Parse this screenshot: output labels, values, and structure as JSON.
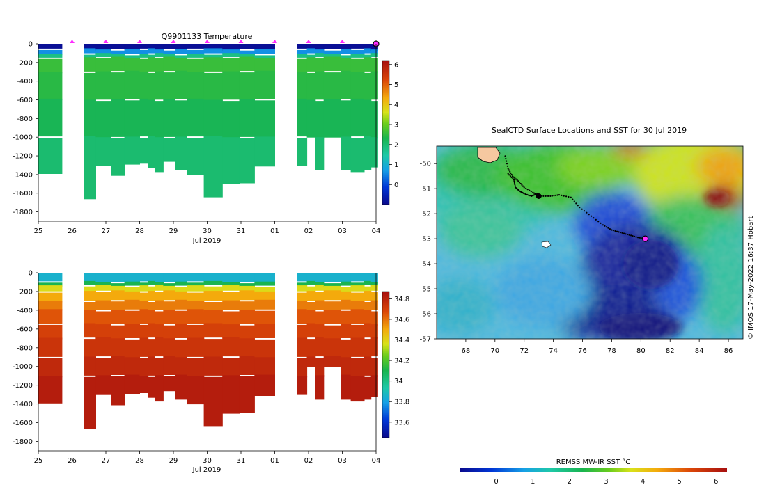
{
  "chart_data": [
    {
      "type": "heatmap",
      "name": "temperature-section",
      "title": "Q9901133  Temperature",
      "xlabel": "Jul 2019",
      "ylabel": "",
      "x_tick_labels": [
        "25",
        "26",
        "27",
        "28",
        "29",
        "30",
        "31",
        "01",
        "02",
        "03",
        "04"
      ],
      "x_tick_days": [
        25,
        26,
        27,
        28,
        29,
        30,
        31,
        32,
        33,
        34,
        35
      ],
      "xlim": [
        25,
        35
      ],
      "y_ticks": [
        0,
        -200,
        -400,
        -600,
        -800,
        -1000,
        -1200,
        -1400,
        -1600,
        -1800
      ],
      "ylim": [
        -1900,
        0
      ],
      "colorbar_ticks": [
        6,
        5,
        4,
        3,
        2,
        1,
        0
      ],
      "colorbar_range": [
        -1,
        6.2
      ],
      "profile_markers_day": [
        26,
        27,
        28,
        29,
        30,
        31,
        32,
        33,
        34
      ],
      "last_position_day": 35,
      "profiles": [
        {
          "start": 25.0,
          "end": 25.7,
          "depth": 1390
        },
        {
          "start": 26.35,
          "end": 26.7,
          "depth": 1660
        },
        {
          "start": 26.7,
          "end": 27.15,
          "depth": 1300
        },
        {
          "start": 27.15,
          "end": 27.55,
          "depth": 1410
        },
        {
          "start": 27.55,
          "end": 28.0,
          "depth": 1290
        },
        {
          "start": 28.0,
          "end": 28.25,
          "depth": 1280
        },
        {
          "start": 28.25,
          "end": 28.45,
          "depth": 1330
        },
        {
          "start": 28.45,
          "end": 28.7,
          "depth": 1370
        },
        {
          "start": 28.7,
          "end": 29.05,
          "depth": 1260
        },
        {
          "start": 29.05,
          "end": 29.4,
          "depth": 1350
        },
        {
          "start": 29.4,
          "end": 29.9,
          "depth": 1400
        },
        {
          "start": 29.9,
          "end": 30.45,
          "depth": 1640
        },
        {
          "start": 30.45,
          "end": 30.95,
          "depth": 1500
        },
        {
          "start": 30.95,
          "end": 31.4,
          "depth": 1490
        },
        {
          "start": 31.4,
          "end": 32.0,
          "depth": 1310
        },
        {
          "start": 32.65,
          "end": 32.95,
          "depth": 1300
        },
        {
          "start": 32.95,
          "end": 33.2,
          "depth": 1000
        },
        {
          "start": 33.2,
          "end": 33.45,
          "depth": 1350
        },
        {
          "start": 33.45,
          "end": 33.95,
          "depth": 1000
        },
        {
          "start": 33.95,
          "end": 34.25,
          "depth": 1350
        },
        {
          "start": 34.25,
          "end": 34.65,
          "depth": 1370
        },
        {
          "start": 34.65,
          "end": 34.85,
          "depth": 1350
        },
        {
          "start": 34.85,
          "end": 35.05,
          "depth": 1320
        }
      ],
      "layers": [
        {
          "from": 0,
          "to": 60,
          "value": -0.9
        },
        {
          "from": 60,
          "to": 110,
          "value": 0.6
        },
        {
          "from": 110,
          "to": 150,
          "value": 1.8
        },
        {
          "from": 150,
          "to": 300,
          "value": 2.6
        },
        {
          "from": 300,
          "to": 600,
          "value": 2.45
        },
        {
          "from": 600,
          "to": 1000,
          "value": 2.25
        },
        {
          "from": 1000,
          "to": 1900,
          "value": 2.0
        }
      ]
    },
    {
      "type": "heatmap",
      "name": "salinity-section",
      "title": "",
      "xlabel": "Jul 2019",
      "ylabel": "",
      "x_tick_labels": [
        "25",
        "26",
        "27",
        "28",
        "29",
        "30",
        "31",
        "01",
        "02",
        "03",
        "04"
      ],
      "x_tick_days": [
        25,
        26,
        27,
        28,
        29,
        30,
        31,
        32,
        33,
        34,
        35
      ],
      "xlim": [
        25,
        35
      ],
      "y_ticks": [
        0,
        -200,
        -400,
        -600,
        -800,
        -1000,
        -1200,
        -1400,
        -1600,
        -1800
      ],
      "ylim": [
        -1900,
        0
      ],
      "colorbar_ticks": [
        34.8,
        34.6,
        34.4,
        34.2,
        34,
        33.8,
        33.6
      ],
      "colorbar_range": [
        33.45,
        34.87
      ],
      "layers": [
        {
          "from": 0,
          "to": 100,
          "value": 33.85
        },
        {
          "from": 100,
          "to": 140,
          "value": 34.1
        },
        {
          "from": 140,
          "to": 200,
          "value": 34.38
        },
        {
          "from": 200,
          "to": 300,
          "value": 34.5
        },
        {
          "from": 300,
          "to": 400,
          "value": 34.58
        },
        {
          "from": 400,
          "to": 550,
          "value": 34.65
        },
        {
          "from": 550,
          "to": 700,
          "value": 34.7
        },
        {
          "from": 700,
          "to": 900,
          "value": 34.74
        },
        {
          "from": 900,
          "to": 1100,
          "value": 34.78
        },
        {
          "from": 1100,
          "to": 1900,
          "value": 34.82
        }
      ]
    },
    {
      "type": "heatmap",
      "name": "sst-map",
      "title": "SealCTD Surface Locations and SST for 30 Jul 2019",
      "xlim": [
        66,
        87
      ],
      "ylim": [
        -57,
        -49.3
      ],
      "x_ticks": [
        68,
        70,
        72,
        74,
        76,
        78,
        80,
        82,
        84,
        86
      ],
      "y_ticks": [
        -50,
        -51,
        -52,
        -53,
        -54,
        -55,
        -56,
        -57
      ],
      "colorbar_label": "REMSS MW-IR SST °C",
      "colorbar_ticks": [
        0,
        1,
        2,
        3,
        4,
        5,
        6
      ],
      "colorbar_range": [
        -1,
        6.3
      ],
      "last_position": [
        80.3,
        -53.0
      ],
      "track": [
        [
          70.7,
          -49.7
        ],
        [
          70.9,
          -50.2
        ],
        [
          71.2,
          -50.5
        ],
        [
          71.6,
          -50.7
        ],
        [
          72.0,
          -50.95
        ],
        [
          72.6,
          -51.15
        ],
        [
          73.0,
          -51.3
        ],
        [
          73.8,
          -51.3
        ],
        [
          74.4,
          -51.25
        ],
        [
          75.2,
          -51.35
        ],
        [
          75.8,
          -51.75
        ],
        [
          76.6,
          -52.1
        ],
        [
          77.4,
          -52.45
        ],
        [
          78.0,
          -52.65
        ],
        [
          78.6,
          -52.75
        ],
        [
          79.2,
          -52.85
        ],
        [
          79.8,
          -52.95
        ],
        [
          80.3,
          -53.0
        ]
      ],
      "track2": [
        [
          70.9,
          -50.4
        ],
        [
          71.3,
          -50.65
        ],
        [
          71.4,
          -50.95
        ],
        [
          71.7,
          -51.1
        ],
        [
          72.0,
          -51.2
        ],
        [
          72.5,
          -51.3
        ],
        [
          72.9,
          -51.2
        ],
        [
          73.1,
          -51.3
        ]
      ]
    }
  ],
  "credit": "© IMOS 17-May-2022 16:37 Hobart",
  "colors": {
    "highlight_marker": "#ff2cff",
    "background": "#ffffff"
  }
}
